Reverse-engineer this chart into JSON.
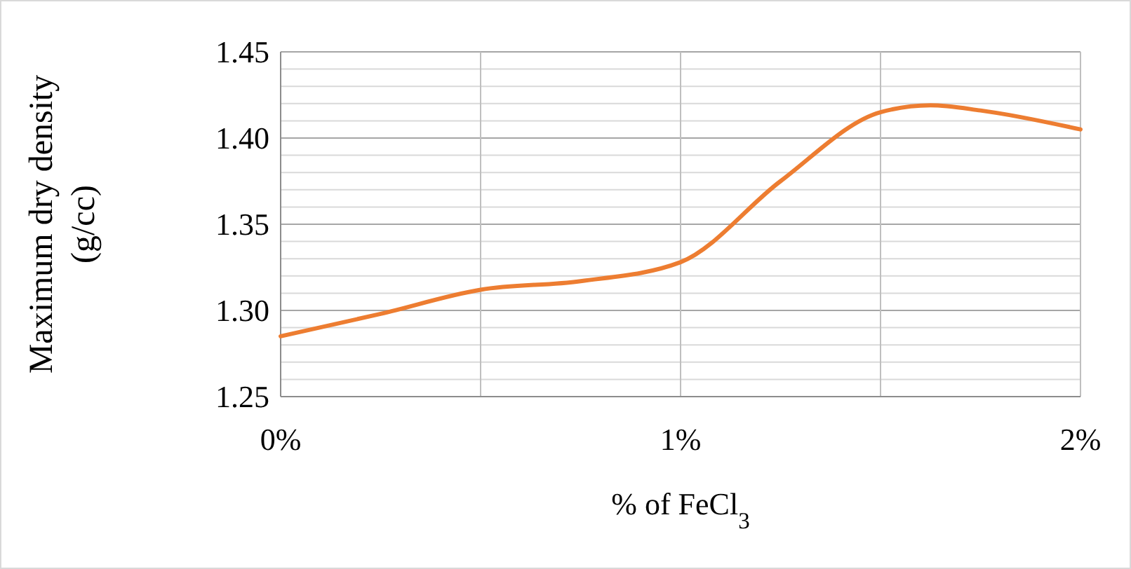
{
  "chart_data": {
    "type": "line",
    "xlabel": "% of FeCl$_{3}$",
    "ylabel": "Maximum dry density\n(g/cc)",
    "x": [
      0,
      0.25,
      0.5,
      0.75,
      1,
      1.25,
      1.5,
      1.625,
      1.75,
      2
    ],
    "series": [
      {
        "color": "#ed7d31",
        "values": [
          1.285,
          1.298,
          1.312,
          1.317,
          1.328,
          1.375,
          1.415,
          1.419,
          1.416,
          1.405
        ]
      }
    ],
    "xlim": [
      0,
      2
    ],
    "xticks": [
      {
        "value": 0,
        "label": "0%"
      },
      {
        "value": 0.5,
        "label": null
      },
      {
        "value": 1,
        "label": "1%"
      },
      {
        "value": 1.5,
        "label": null
      },
      {
        "value": 2,
        "label": "2%"
      }
    ],
    "ylim": [
      1.25,
      1.45
    ],
    "yticks": [
      1.25,
      {
        "value": 1.26,
        "label": null
      },
      {
        "value": 1.27,
        "label": null
      },
      {
        "value": 1.28,
        "label": null
      },
      {
        "value": 1.29,
        "label": null
      },
      {
        "value": 1.3,
        "label": "1.30"
      },
      {
        "value": 1.31,
        "label": null
      },
      {
        "value": 1.32,
        "label": null
      },
      {
        "value": 1.33,
        "label": null
      },
      {
        "value": 1.34,
        "label": null
      },
      1.35,
      {
        "value": 1.36,
        "label": null
      },
      {
        "value": 1.37,
        "label": null
      },
      {
        "value": 1.38,
        "label": null
      },
      {
        "value": 1.39,
        "label": null
      },
      {
        "value": 1.4,
        "label": "1.40"
      },
      {
        "value": 1.41,
        "label": null
      },
      {
        "value": 1.42,
        "label": null
      },
      {
        "value": 1.43,
        "label": null
      },
      {
        "value": 1.44,
        "label": null
      },
      1.45
    ],
    "grid": true,
    "marker": "none",
    "line_style": "solid"
  }
}
